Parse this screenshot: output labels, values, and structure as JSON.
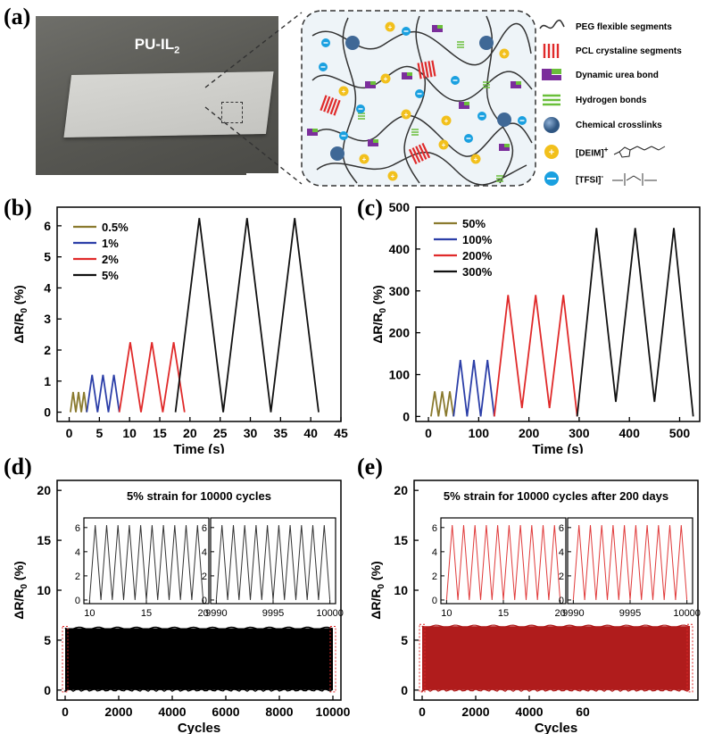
{
  "panels": {
    "a": {
      "letter": "(a)",
      "photo_label_main": "PU-IL",
      "photo_label_sub": "2",
      "legend": [
        {
          "label": "PEG flexible segments",
          "icon": "wavy-line-icon"
        },
        {
          "label": "PCL crystaline segments",
          "icon": "red-bars-icon"
        },
        {
          "label": "Dynamic urea bond",
          "icon": "purple-green-block-icon"
        },
        {
          "label": "Hydrogen bonds",
          "icon": "green-lines-icon"
        },
        {
          "label": "Chemical crosslinks",
          "icon": "blue-sphere-icon"
        },
        {
          "label": "[DEIM]",
          "sup": "+",
          "icon": "yellow-cation-icon"
        },
        {
          "label": "[TFSI]",
          "sup": "-",
          "icon": "blue-anion-icon"
        }
      ],
      "colors": {
        "peg": "#333333",
        "pcl": "#e02a2a",
        "urea_purple": "#7b2e9b",
        "urea_green": "#6abf3a",
        "crosslink": "#3f6896",
        "cation": "#f2c01c",
        "anion": "#1aa0e0"
      }
    },
    "b": {
      "letter": "(b)"
    },
    "c": {
      "letter": "(c)"
    },
    "d": {
      "letter": "(d)"
    },
    "e": {
      "letter": "(e)"
    }
  },
  "chart_data": [
    {
      "id": "b",
      "type": "line",
      "xlabel": "Time (s)",
      "ylabel_main": "ΔR/R",
      "ylabel_sub": "0",
      "ylabel_unit": " (%)",
      "xlim": [
        -2,
        45
      ],
      "ylim": [
        -0.3,
        6.6
      ],
      "xticks": [
        0,
        5,
        10,
        15,
        20,
        25,
        30,
        35,
        40,
        45
      ],
      "yticks": [
        0,
        1,
        2,
        3,
        4,
        5,
        6
      ],
      "series": [
        {
          "name": "0.5%",
          "color": "#8a7a2e",
          "amplitude": 0.65,
          "t_start": 0.2,
          "period": 0.9,
          "cycles": 3
        },
        {
          "name": "1%",
          "color": "#2c3fa8",
          "amplitude": 1.2,
          "t_start": 2.9,
          "period": 1.8,
          "cycles": 3
        },
        {
          "name": "2%",
          "color": "#e02a2a",
          "amplitude": 2.25,
          "t_start": 8.3,
          "period": 3.6,
          "cycles": 3
        },
        {
          "name": "5%",
          "color": "#111111",
          "amplitude": 6.25,
          "t_start": 17.6,
          "period": 7.9,
          "cycles": 3
        }
      ]
    },
    {
      "id": "c",
      "type": "line",
      "xlabel": "Time (s)",
      "ylabel_main": "ΔR/R",
      "ylabel_sub": "0",
      "ylabel_unit": " (%)",
      "xlim": [
        -25,
        540
      ],
      "ylim": [
        -12,
        500
      ],
      "xticks": [
        0,
        100,
        200,
        300,
        400,
        500
      ],
      "yticks": [
        0,
        100,
        200,
        300,
        400,
        500
      ],
      "series": [
        {
          "name": "50%",
          "color": "#8a7a2e",
          "amplitude": 60,
          "baseline": 0,
          "t_start": 5,
          "period": 15,
          "cycles": 3
        },
        {
          "name": "100%",
          "color": "#2c3fa8",
          "amplitude": 135,
          "baseline": 0,
          "t_start": 50,
          "period": 27,
          "cycles": 3
        },
        {
          "name": "200%",
          "color": "#e02a2a",
          "amplitude": 290,
          "baseline": 20,
          "t_start": 131,
          "period": 55,
          "cycles": 3
        },
        {
          "name": "300%",
          "color": "#111111",
          "amplitude": 450,
          "baseline": 35,
          "t_start": 296,
          "period": 77,
          "cycles": 3
        }
      ]
    },
    {
      "id": "d",
      "type": "line",
      "title": "5% strain for 10000 cycles",
      "xlabel": "Cycles",
      "ylabel_main": "ΔR/R",
      "ylabel_sub": "0",
      "ylabel_unit": " (%)",
      "xlim": [
        -300,
        10300
      ],
      "ylim": [
        -1,
        21
      ],
      "xticks": [
        0,
        2000,
        4000,
        6000,
        8000,
        10000
      ],
      "yticks": [
        0,
        5,
        10,
        15,
        20
      ],
      "band": {
        "low": 0,
        "high": 6.2,
        "color": "#000000"
      },
      "insets": [
        {
          "xlim": [
            9.5,
            20.5
          ],
          "xticks": [
            10,
            15,
            20
          ],
          "ylim": [
            -0.3,
            6.8
          ],
          "yticks": [
            0,
            2,
            4,
            6
          ],
          "peak": 6.2,
          "color": "#333333"
        },
        {
          "xlim": [
            9989.5,
            10000.5
          ],
          "xticks": [
            9990,
            9995,
            10000
          ],
          "ylim": [
            -0.3,
            6.8
          ],
          "yticks": [
            0,
            2,
            4,
            6
          ],
          "peak": 6.2,
          "color": "#333333"
        }
      ]
    },
    {
      "id": "e",
      "type": "line",
      "title": "5% strain for 10000 cycles after 200 days",
      "xlabel": "Cycles",
      "xtick_overlay": "60",
      "ylabel_main": "ΔR/R",
      "ylabel_sub": "0",
      "ylabel_unit": " (%)",
      "xlim": [
        -300,
        10300
      ],
      "ylim": [
        -1,
        21
      ],
      "xticks": [
        0,
        2000,
        4000
      ],
      "yticks": [
        0,
        5,
        10,
        15,
        20
      ],
      "band": {
        "low": 0,
        "high": 6.4,
        "color": "#b01c1c"
      },
      "insets": [
        {
          "xlim": [
            9.5,
            20.5
          ],
          "xticks": [
            10,
            15,
            20
          ],
          "ylim": [
            -0.3,
            6.8
          ],
          "yticks": [
            0,
            2,
            4,
            6
          ],
          "peak": 6.2,
          "color": "#e03a3a"
        },
        {
          "xlim": [
            9989.5,
            10000.5
          ],
          "xticks": [
            9990,
            9995,
            10000
          ],
          "ylim": [
            -0.3,
            6.8
          ],
          "yticks": [
            0,
            2,
            4,
            6
          ],
          "peak": 6.2,
          "color": "#e03a3a"
        }
      ]
    }
  ]
}
